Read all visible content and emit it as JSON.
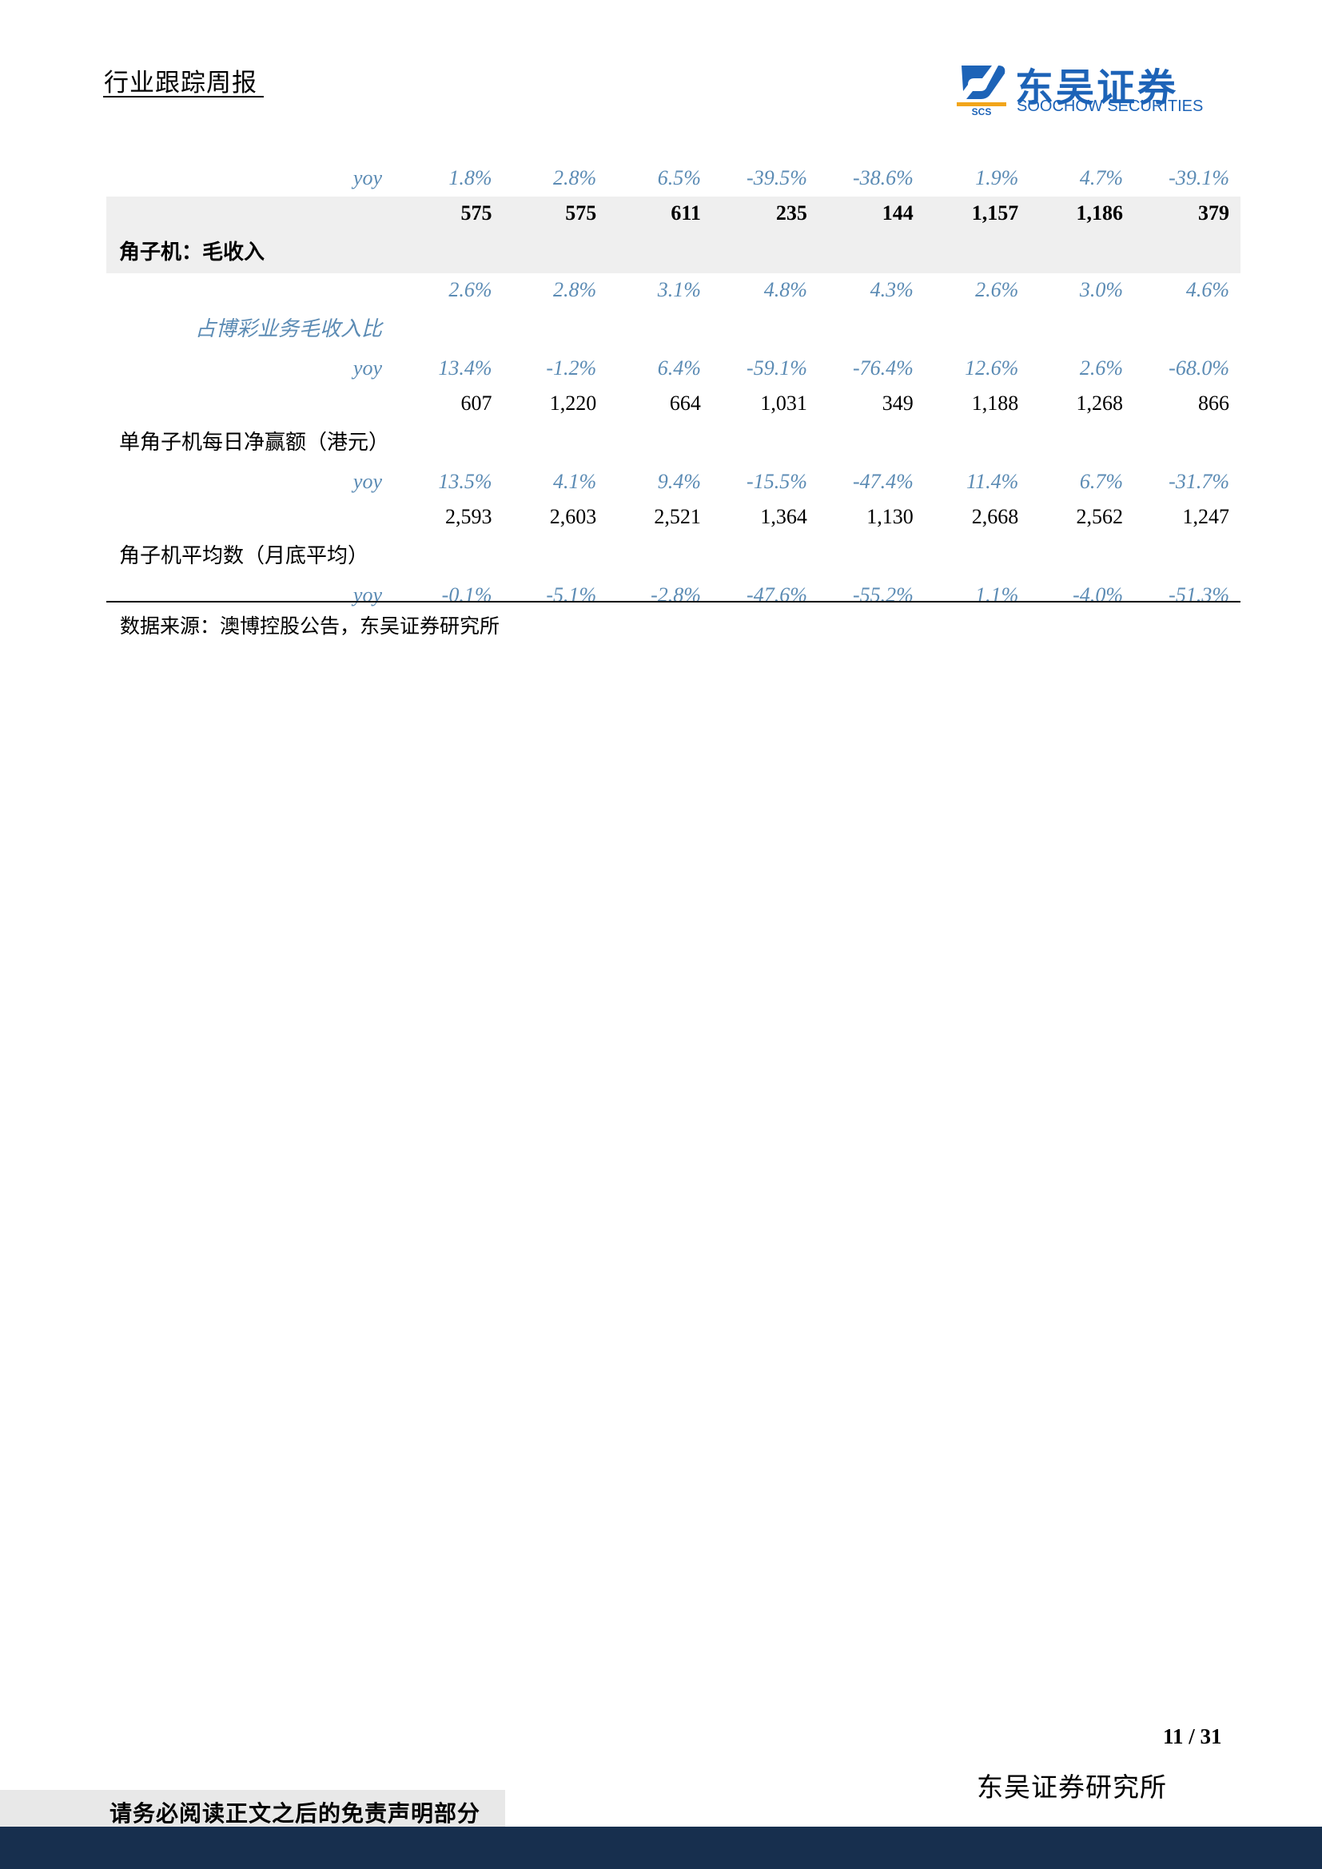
{
  "header": {
    "title": "行业跟踪周报",
    "logo_cn": "东吴证券",
    "logo_en": "SOOCHOW SECURITIES",
    "logo_mark": "SCS",
    "brand_color": "#1d63b7"
  },
  "table": {
    "rows": [
      {
        "type": "yoy",
        "label": "yoy",
        "values": [
          "1.8%",
          "2.8%",
          "6.5%",
          "-39.5%",
          "-38.6%",
          "1.9%",
          "4.7%",
          "-39.1%"
        ]
      },
      {
        "type": "main",
        "bold": true,
        "shade": true,
        "label": "角子机：毛收入",
        "values": [
          "575",
          "575",
          "611",
          "235",
          "144",
          "1,157",
          "1,186",
          "379"
        ]
      },
      {
        "type": "ratio",
        "label": "占博彩业务毛收入比",
        "values": [
          "2.6%",
          "2.8%",
          "3.1%",
          "4.8%",
          "4.3%",
          "2.6%",
          "3.0%",
          "4.6%"
        ]
      },
      {
        "type": "yoy",
        "label": "yoy",
        "values": [
          "13.4%",
          "-1.2%",
          "6.4%",
          "-59.1%",
          "-76.4%",
          "12.6%",
          "2.6%",
          "-68.0%"
        ]
      },
      {
        "type": "main",
        "bold": false,
        "shade": false,
        "label": "单角子机每日净赢额（港元）",
        "values": [
          "607",
          "1,220",
          "664",
          "1,031",
          "349",
          "1,188",
          "1,268",
          "866"
        ]
      },
      {
        "type": "yoy",
        "label": "yoy",
        "values": [
          "13.5%",
          "4.1%",
          "9.4%",
          "-15.5%",
          "-47.4%",
          "11.4%",
          "6.7%",
          "-31.7%"
        ]
      },
      {
        "type": "main",
        "bold": false,
        "shade": false,
        "label": "角子机平均数（月底平均）",
        "values": [
          "2,593",
          "2,603",
          "2,521",
          "1,364",
          "1,130",
          "2,668",
          "2,562",
          "1,247"
        ]
      },
      {
        "type": "yoy",
        "label": "yoy",
        "values": [
          "-0.1%",
          "-5.1%",
          "-2.8%",
          "-47.6%",
          "-55.2%",
          "1.1%",
          "-4.0%",
          "-51.3%"
        ]
      }
    ],
    "accent_color": "#5b8bb4"
  },
  "source": "数据来源：澳博控股公告，东吴证券研究所",
  "footer": {
    "page": "11 / 31",
    "org": "东吴证券研究所",
    "disclaimer": "请务必阅读正文之后的免责声明部分"
  }
}
